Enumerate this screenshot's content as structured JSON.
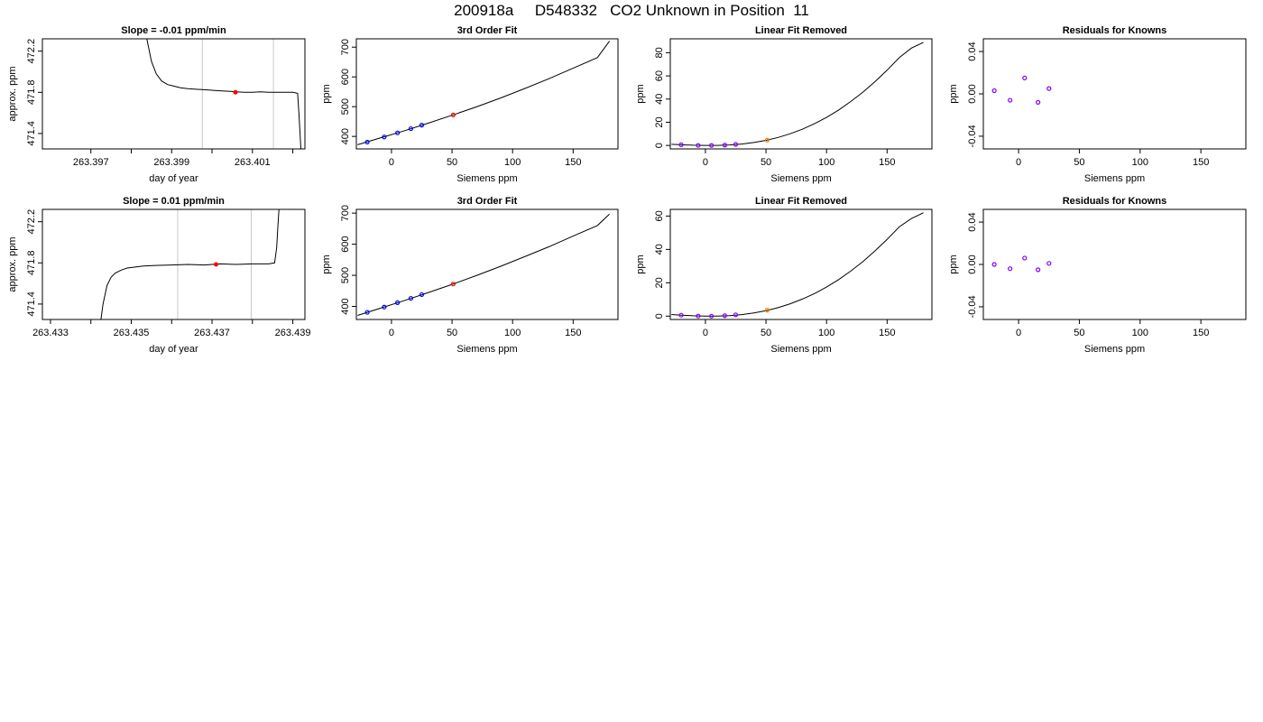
{
  "page": {
    "title": "200918a     D548332   CO2 Unknown in Position  11"
  },
  "chart_data": [
    {
      "id": "r1c1",
      "type": "line",
      "title": "Slope =  -0.01  ppm/min",
      "xlabel": "day of year",
      "ylabel": "approx. ppm",
      "xlim": [
        263.3958,
        263.4023
      ],
      "ylim": [
        471.25,
        472.32
      ],
      "xticks_labeled": [
        263.397,
        263.399,
        263.401
      ],
      "xticks_minor": [
        263.398,
        263.4,
        263.402
      ],
      "yticks": [
        471.4,
        471.8,
        472.2
      ],
      "ytick_labels": [
        "471.4",
        "471.8",
        "472.2"
      ],
      "vlines": [
        263.39976,
        263.40152
      ],
      "trace": {
        "x": [
          263.39838,
          263.3985,
          263.39862,
          263.39875,
          263.3989,
          263.39905,
          263.39922,
          263.3994,
          263.3996,
          263.3998,
          263.4,
          263.4002,
          263.4004,
          263.4006,
          263.4008,
          263.401,
          263.4012,
          263.4014,
          263.4016,
          263.4018,
          263.402,
          263.40212,
          263.40215,
          263.40218,
          263.4022
        ],
        "y": [
          472.33,
          472.1,
          471.98,
          471.91,
          471.875,
          471.86,
          471.845,
          471.835,
          471.83,
          471.825,
          471.82,
          471.815,
          471.81,
          471.805,
          471.8,
          471.8,
          471.805,
          471.8,
          471.8,
          471.8,
          471.8,
          471.79,
          471.6,
          471.4,
          471.25
        ]
      },
      "marker": {
        "x": 263.40058,
        "y": 471.8,
        "color": "#ff0000"
      }
    },
    {
      "id": "r1c2",
      "type": "scatter",
      "title": "3rd Order Fit",
      "xlabel": "Siemens ppm",
      "ylabel": "ppm",
      "xlim": [
        -29,
        187
      ],
      "ylim": [
        358,
        728
      ],
      "xticks": [
        0,
        50,
        100,
        150
      ],
      "yticks": [
        400,
        500,
        600,
        700
      ],
      "curve": {
        "x": [
          -28,
          -10,
          10,
          30,
          50,
          70,
          90,
          110,
          130,
          150,
          170,
          180
        ],
        "y": [
          372,
          394,
          418,
          444,
          471,
          499,
          529,
          561,
          594,
          629,
          665,
          720
        ]
      },
      "knowns": {
        "x": [
          -20,
          -6,
          5,
          16,
          25
        ],
        "y": [
          381,
          398,
          412,
          426,
          438
        ],
        "color": "#0000ff"
      },
      "unknown": {
        "x": [
          51
        ],
        "y": [
          472
        ],
        "color": "#ff0000"
      }
    },
    {
      "id": "r1c3",
      "type": "scatter",
      "title": "Linear Fit Removed",
      "xlabel": "Siemens ppm",
      "ylabel": "ppm",
      "xlim": [
        -29,
        187
      ],
      "ylim": [
        -3,
        92
      ],
      "xticks": [
        0,
        50,
        100,
        150
      ],
      "yticks": [
        0,
        20,
        40,
        60,
        80
      ],
      "curve": {
        "x": [
          -28,
          -20,
          -10,
          0,
          10,
          20,
          30,
          40,
          50,
          60,
          70,
          80,
          90,
          100,
          110,
          120,
          130,
          140,
          150,
          160,
          170,
          180
        ],
        "y": [
          1.0,
          0.6,
          0.2,
          0.0,
          0.05,
          0.4,
          1.2,
          2.5,
          4.4,
          6.9,
          10.1,
          14.0,
          18.7,
          24.2,
          30.6,
          37.9,
          46.0,
          55.0,
          64.9,
          75.7,
          84.0,
          89.0
        ]
      },
      "knowns": {
        "x": [
          -20,
          -6,
          5,
          16,
          25
        ],
        "y": [
          0.6,
          0.05,
          0.0,
          0.3,
          0.9
        ],
        "color": "#8000ff"
      },
      "unknown": {
        "x": [
          51
        ],
        "y": [
          4.6
        ],
        "color": "#ff8000"
      }
    },
    {
      "id": "r1c4",
      "type": "scatter",
      "title": "Residuals for Knowns",
      "xlabel": "Siemens ppm",
      "ylabel": "ppm",
      "xlim": [
        -29,
        187
      ],
      "ylim": [
        -0.052,
        0.052
      ],
      "xticks": [
        0,
        50,
        100,
        150
      ],
      "yticks": [
        -0.04,
        0.0,
        0.04
      ],
      "ytick_labels": [
        "-0.04",
        "0.00",
        "0.04"
      ],
      "knowns": {
        "x": [
          -20,
          -7,
          5,
          16,
          25
        ],
        "y": [
          0.003,
          -0.006,
          0.015,
          -0.008,
          0.005
        ],
        "color": "#8000ff"
      }
    },
    {
      "id": "r2c1",
      "type": "line",
      "title": "Slope =  0.01  ppm/min",
      "xlabel": "day of year",
      "ylabel": "approx. ppm",
      "xlim": [
        263.4328,
        263.4393
      ],
      "ylim": [
        471.25,
        472.32
      ],
      "xticks_labeled": [
        263.433,
        263.435,
        263.437,
        263.439
      ],
      "xticks_minor": [
        263.434,
        263.436,
        263.438
      ],
      "yticks": [
        471.4,
        471.8,
        472.2
      ],
      "ytick_labels": [
        "471.4",
        "471.8",
        "472.2"
      ],
      "vlines": [
        263.43615,
        263.43797
      ],
      "trace": {
        "x": [
          263.43425,
          263.4343,
          263.4344,
          263.4345,
          263.4346,
          263.43475,
          263.4349,
          263.4351,
          263.4353,
          263.4356,
          263.436,
          263.4364,
          263.4368,
          263.4372,
          263.4376,
          263.438,
          263.4384,
          263.43855,
          263.4386,
          263.43863,
          263.43866
        ],
        "y": [
          471.25,
          471.4,
          471.58,
          471.66,
          471.7,
          471.73,
          471.75,
          471.76,
          471.77,
          471.775,
          471.78,
          471.785,
          471.78,
          471.79,
          471.785,
          471.79,
          471.79,
          471.8,
          471.95,
          472.15,
          472.33
        ]
      },
      "marker": {
        "x": 263.4371,
        "y": 471.785,
        "color": "#ff0000"
      }
    },
    {
      "id": "r2c2",
      "type": "scatter",
      "title": "3rd Order Fit",
      "xlabel": "Siemens ppm",
      "ylabel": "ppm",
      "xlim": [
        -29,
        187
      ],
      "ylim": [
        358,
        712
      ],
      "xticks": [
        0,
        50,
        100,
        150
      ],
      "yticks": [
        400,
        500,
        600,
        700
      ],
      "curve": {
        "x": [
          -28,
          -10,
          10,
          30,
          50,
          70,
          90,
          110,
          130,
          150,
          170,
          180
        ],
        "y": [
          371,
          393,
          418,
          444,
          471,
          499,
          529,
          560,
          592,
          626,
          660,
          697
        ]
      },
      "knowns": {
        "x": [
          -20,
          -6,
          5,
          16,
          25
        ],
        "y": [
          381,
          398,
          412,
          426,
          438
        ],
        "color": "#0000ff"
      },
      "unknown": {
        "x": [
          51
        ],
        "y": [
          472
        ],
        "color": "#ff0000"
      }
    },
    {
      "id": "r2c3",
      "type": "scatter",
      "title": "Linear Fit Removed",
      "xlabel": "Siemens ppm",
      "ylabel": "ppm",
      "xlim": [
        -29,
        187
      ],
      "ylim": [
        -2,
        64
      ],
      "xticks": [
        0,
        50,
        100,
        150
      ],
      "yticks": [
        0,
        20,
        40,
        60
      ],
      "curve": {
        "x": [
          -28,
          -20,
          -10,
          0,
          10,
          20,
          30,
          40,
          50,
          60,
          70,
          80,
          90,
          100,
          110,
          120,
          130,
          140,
          150,
          160,
          170,
          180
        ],
        "y": [
          1.0,
          0.6,
          0.2,
          0.0,
          0.05,
          0.3,
          0.9,
          1.9,
          3.3,
          5.1,
          7.4,
          10.2,
          13.5,
          17.4,
          21.9,
          27.0,
          32.7,
          39.1,
          46.0,
          53.5,
          58.5,
          62.0
        ]
      },
      "knowns": {
        "x": [
          -20,
          -6,
          5,
          16,
          25
        ],
        "y": [
          0.6,
          0.05,
          0.0,
          0.3,
          0.8
        ],
        "color": "#8000ff"
      },
      "unknown": {
        "x": [
          51
        ],
        "y": [
          3.6
        ],
        "color": "#ff8000"
      }
    },
    {
      "id": "r2c4",
      "type": "scatter",
      "title": "Residuals for Knowns",
      "xlabel": "Siemens ppm",
      "ylabel": "ppm",
      "xlim": [
        -29,
        187
      ],
      "ylim": [
        -0.052,
        0.052
      ],
      "xticks": [
        0,
        50,
        100,
        150
      ],
      "yticks": [
        -0.04,
        0.0,
        0.04
      ],
      "ytick_labels": [
        "-0.04",
        "0.00",
        "0.04"
      ],
      "knowns": {
        "x": [
          -20,
          -7,
          5,
          16,
          25
        ],
        "y": [
          0.0,
          -0.004,
          0.006,
          -0.005,
          0.001
        ],
        "color": "#8000ff"
      }
    }
  ]
}
